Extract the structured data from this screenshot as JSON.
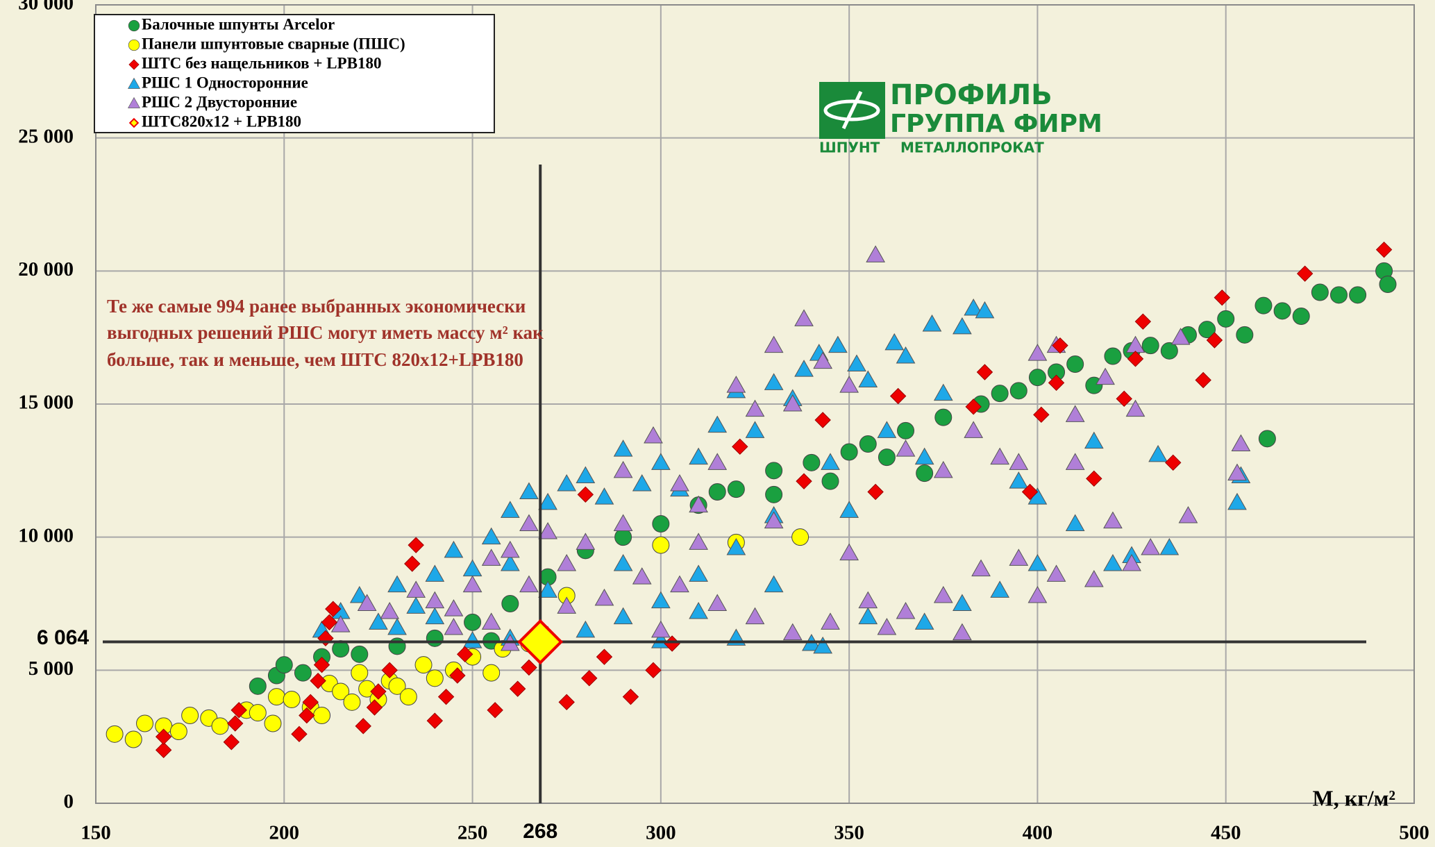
{
  "chart_data": {
    "type": "scatter",
    "xlabel": "M, кг/м²",
    "annotation": [
      "Те же самые 994 ранее выбранных экономически",
      "выгодных решений РШС могут иметь массу м² как",
      "больше, так и меньше, чем ШТС 820х12+LPB180"
    ],
    "logo": [
      "ПРОФИЛЬ",
      "ГРУППА ФИРМ",
      "ШПУНТ",
      "МЕТАЛЛОПРОКАТ"
    ],
    "xlim": [
      150,
      500
    ],
    "ylim": [
      0,
      30000
    ],
    "xticks": [
      150,
      200,
      250,
      300,
      350,
      400,
      450,
      500
    ],
    "yticks": [
      {
        "value": 0,
        "label": "0"
      },
      {
        "value": 5000,
        "label": "5 000"
      },
      {
        "value": 10000,
        "label": "10 000"
      },
      {
        "value": 15000,
        "label": "15 000"
      },
      {
        "value": 20000,
        "label": "20 000"
      },
      {
        "value": 25000,
        "label": "25 000"
      },
      {
        "value": 30000,
        "label": "30 000"
      }
    ],
    "grid": true,
    "legend": "upper left",
    "vline": {
      "value": 268,
      "label": "268"
    },
    "hline": {
      "value": 6064,
      "label": "6 064"
    },
    "series": [
      {
        "name": "Балочные шпунты Arcelor",
        "color": "#1aa040",
        "marker": "circle",
        "x": [
          193,
          198,
          200,
          205,
          210,
          215,
          220,
          230,
          240,
          250,
          255,
          260,
          270,
          280,
          290,
          300,
          310,
          320,
          330,
          340,
          350,
          355,
          365,
          375,
          385,
          390,
          395,
          400,
          405,
          410,
          415,
          420,
          425,
          430,
          435,
          440,
          445,
          450,
          455,
          460,
          465,
          470,
          475,
          480,
          485,
          492,
          493,
          461,
          345,
          330,
          315,
          360,
          370
        ],
        "y": [
          4400,
          4800,
          5200,
          4900,
          5500,
          5800,
          5600,
          5900,
          6200,
          6800,
          6100,
          7500,
          8500,
          9500,
          10000,
          10500,
          11200,
          11800,
          12500,
          12800,
          13200,
          13500,
          14000,
          14500,
          15000,
          15400,
          15500,
          16000,
          16200,
          16500,
          15700,
          16800,
          17000,
          17200,
          17000,
          17600,
          17800,
          18200,
          17600,
          18700,
          18500,
          18300,
          19200,
          19100,
          19100,
          20000,
          19500,
          13700,
          12100,
          11600,
          11700,
          13000,
          12400
        ]
      },
      {
        "name": "Панели шпунтовые сварные (ПШС)",
        "color": "#ffff00",
        "marker": "circle",
        "x": [
          155,
          160,
          163,
          168,
          172,
          175,
          180,
          183,
          190,
          193,
          197,
          198,
          202,
          207,
          210,
          212,
          215,
          218,
          220,
          222,
          225,
          228,
          230,
          233,
          237,
          240,
          245,
          250,
          255,
          258,
          265,
          275,
          300,
          337,
          320
        ],
        "y": [
          2600,
          2400,
          3000,
          2900,
          2700,
          3300,
          3200,
          2900,
          3500,
          3400,
          3000,
          4000,
          3900,
          3600,
          3300,
          4500,
          4200,
          3800,
          4900,
          4300,
          3900,
          4600,
          4400,
          4000,
          5200,
          4700,
          5000,
          5500,
          4900,
          5800,
          6000,
          7800,
          9700,
          10000,
          9800
        ]
      },
      {
        "name": "РШС 1 Односторонние",
        "color": "#1ea8e8",
        "marker": "triangle",
        "x": [
          210,
          215,
          220,
          225,
          230,
          235,
          240,
          245,
          250,
          255,
          260,
          265,
          270,
          275,
          280,
          285,
          290,
          295,
          300,
          305,
          310,
          315,
          320,
          325,
          330,
          335,
          338,
          342,
          347,
          352,
          355,
          362,
          365,
          372,
          380,
          383,
          386,
          375,
          360,
          345,
          330,
          320,
          310,
          300,
          290,
          280,
          270,
          260,
          250,
          300,
          320,
          340,
          343,
          355,
          370,
          380,
          390,
          400,
          410,
          420,
          425,
          432,
          453,
          454,
          415,
          395,
          370,
          350,
          330,
          310,
          290,
          270,
          260,
          240,
          230,
          400,
          435
        ],
        "y": [
          6500,
          7200,
          7800,
          6800,
          8200,
          7400,
          8600,
          9500,
          8800,
          10000,
          11000,
          11700,
          11300,
          12000,
          12300,
          11500,
          13300,
          12000,
          12800,
          11800,
          13000,
          14200,
          15500,
          14000,
          15800,
          15200,
          16300,
          16900,
          17200,
          16500,
          15900,
          17300,
          16800,
          18000,
          17900,
          18600,
          18500,
          15400,
          14000,
          12800,
          10800,
          9600,
          8600,
          7600,
          7000,
          6500,
          6300,
          6200,
          6100,
          6100,
          6200,
          6000,
          5900,
          7000,
          6800,
          7500,
          8000,
          9000,
          10500,
          9000,
          9300,
          13100,
          11300,
          12300,
          13600,
          12100,
          13000,
          11000,
          8200,
          7200,
          9000,
          8000,
          9000,
          7000,
          6600,
          11500,
          9600
        ]
      },
      {
        "name": "РШС 2 Двусторонние",
        "color": "#b07fd8",
        "marker": "triangle",
        "x": [
          215,
          222,
          228,
          235,
          240,
          245,
          250,
          255,
          260,
          265,
          270,
          275,
          280,
          290,
          298,
          305,
          310,
          315,
          320,
          325,
          330,
          335,
          338,
          343,
          350,
          357,
          365,
          375,
          383,
          390,
          395,
          400,
          405,
          410,
          418,
          426,
          426,
          438,
          453,
          454,
          430,
          425,
          415,
          405,
          395,
          385,
          375,
          365,
          355,
          345,
          335,
          325,
          315,
          305,
          295,
          285,
          275,
          265,
          255,
          245,
          260,
          300,
          360,
          380,
          400,
          410,
          420,
          440,
          350,
          330,
          310,
          290
        ],
        "y": [
          6700,
          7500,
          7200,
          8000,
          7600,
          7300,
          8200,
          9200,
          9500,
          10500,
          10200,
          9000,
          9800,
          12500,
          13800,
          12000,
          11200,
          12800,
          15700,
          14800,
          17200,
          15000,
          18200,
          16600,
          15700,
          20600,
          13300,
          12500,
          14000,
          13000,
          12800,
          16900,
          17200,
          14600,
          16000,
          14800,
          17200,
          17500,
          12400,
          13500,
          9600,
          9000,
          8400,
          8600,
          9200,
          8800,
          7800,
          7200,
          7600,
          6800,
          6400,
          7000,
          7500,
          8200,
          8500,
          7700,
          7400,
          8200,
          6800,
          6600,
          6000,
          6500,
          6600,
          6400,
          7800,
          12800,
          10600,
          10800,
          9400,
          10600,
          9800,
          10500
        ]
      },
      {
        "name": "ШТС без нащельников + LPB180",
        "color": "#ee0000",
        "marker": "diamond",
        "x": [
          168,
          168,
          186,
          187,
          188,
          204,
          206,
          207,
          209,
          210,
          211,
          212,
          213,
          221,
          224,
          225,
          228,
          234,
          235,
          240,
          243,
          246,
          248,
          256,
          262,
          265,
          275,
          280,
          281,
          285,
          292,
          298,
          303,
          321,
          338,
          343,
          357,
          363,
          383,
          386,
          398,
          401,
          405,
          406,
          415,
          423,
          426,
          428,
          436,
          444,
          447,
          449,
          471,
          492
        ],
        "y": [
          2000,
          2500,
          2300,
          3000,
          3500,
          2600,
          3300,
          3800,
          4600,
          5200,
          6200,
          6800,
          7300,
          2900,
          3600,
          4200,
          5000,
          9000,
          9700,
          3100,
          4000,
          4800,
          5600,
          3500,
          4300,
          5100,
          3800,
          11600,
          4700,
          5500,
          4000,
          5000,
          6000,
          13400,
          12100,
          14400,
          11700,
          15300,
          14900,
          16200,
          11700,
          14600,
          15800,
          17200,
          12200,
          15200,
          16700,
          18100,
          12800,
          15900,
          17400,
          19000,
          19900,
          20800
        ]
      },
      {
        "name": "ШТС820х12 + LPB180",
        "color": "#ffff00",
        "edgecolor": "#ee0000",
        "marker": "bigdiamond",
        "x": [
          268
        ],
        "y": [
          6064
        ]
      }
    ],
    "legend_order": [
      0,
      1,
      4,
      2,
      3,
      5
    ]
  }
}
